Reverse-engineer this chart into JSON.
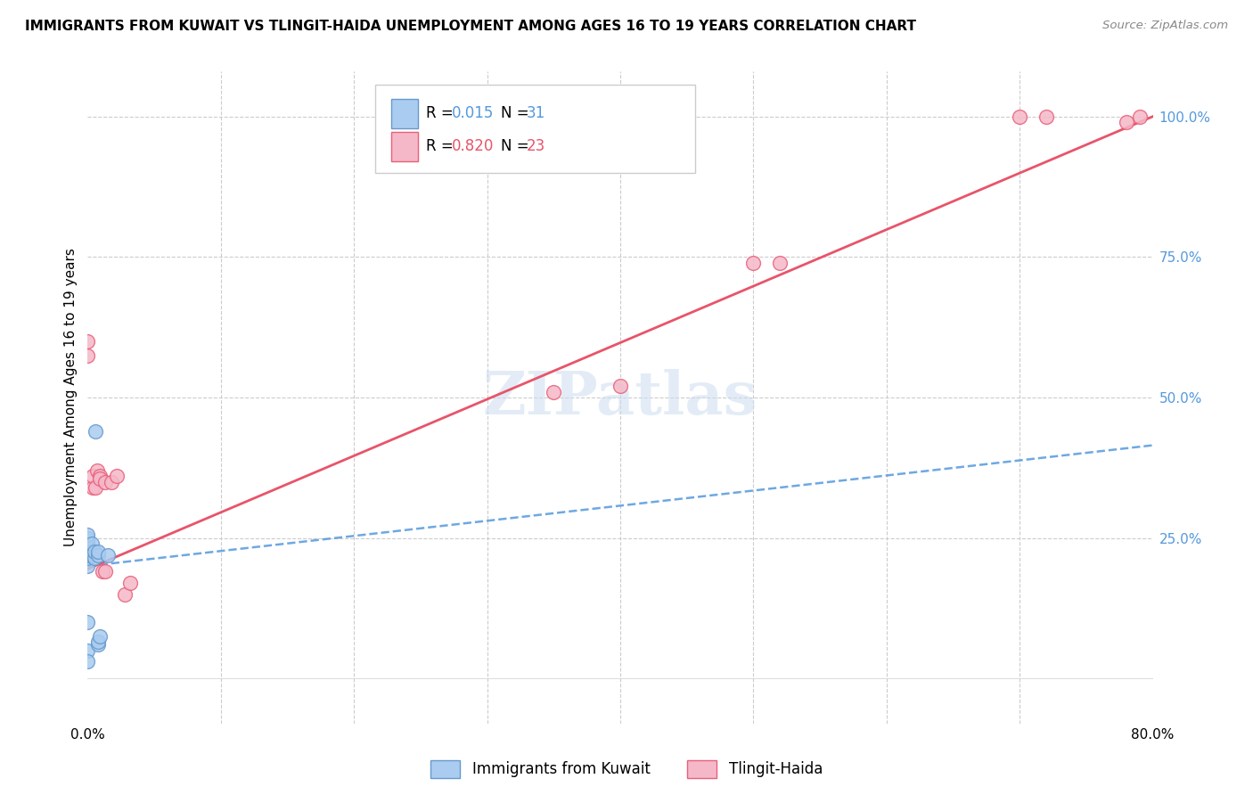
{
  "title": "IMMIGRANTS FROM KUWAIT VS TLINGIT-HAIDA UNEMPLOYMENT AMONG AGES 16 TO 19 YEARS CORRELATION CHART",
  "source": "Source: ZipAtlas.com",
  "ylabel": "Unemployment Among Ages 16 to 19 years",
  "ytick_labels": [
    "25.0%",
    "50.0%",
    "75.0%",
    "100.0%"
  ],
  "ytick_values": [
    0.25,
    0.5,
    0.75,
    1.0
  ],
  "xlim": [
    0,
    0.8
  ],
  "ylim": [
    -0.08,
    1.08
  ],
  "legend_blue_R": "0.015",
  "legend_blue_N": "31",
  "legend_pink_R": "0.820",
  "legend_pink_N": "23",
  "watermark": "ZIPatlas",
  "blue_fill": "#aaccf0",
  "blue_edge": "#6699cc",
  "pink_fill": "#f5b8c8",
  "pink_edge": "#e8607a",
  "blue_line_color": "#5599dd",
  "pink_line_color": "#e8546a",
  "blue_text_color": "#5599dd",
  "pink_text_color": "#e8546a",
  "right_tick_color": "#5599dd",
  "kuwait_x": [
    0.0,
    0.0,
    0.0,
    0.0,
    0.0,
    0.0,
    0.0,
    0.0,
    0.0,
    0.0,
    0.0,
    0.0,
    0.0,
    0.0,
    0.0,
    0.0,
    0.0,
    0.0,
    0.0,
    0.0,
    0.003,
    0.003,
    0.005,
    0.005,
    0.006,
    0.008,
    0.008,
    0.008,
    0.008,
    0.009,
    0.015
  ],
  "kuwait_y": [
    0.2,
    0.215,
    0.22,
    0.22,
    0.225,
    0.225,
    0.23,
    0.23,
    0.235,
    0.235,
    0.24,
    0.24,
    0.245,
    0.245,
    0.25,
    0.25,
    0.255,
    0.1,
    0.05,
    0.03,
    0.22,
    0.24,
    0.215,
    0.225,
    0.44,
    0.22,
    0.225,
    0.06,
    0.065,
    0.075,
    0.22
  ],
  "tlingit_x": [
    0.0,
    0.0,
    0.004,
    0.004,
    0.006,
    0.007,
    0.009,
    0.009,
    0.011,
    0.013,
    0.013,
    0.018,
    0.022,
    0.028,
    0.032,
    0.35,
    0.4,
    0.5,
    0.52,
    0.7,
    0.72,
    0.78,
    0.79
  ],
  "tlingit_y": [
    0.575,
    0.6,
    0.34,
    0.36,
    0.34,
    0.37,
    0.36,
    0.355,
    0.19,
    0.19,
    0.35,
    0.35,
    0.36,
    0.15,
    0.17,
    0.51,
    0.52,
    0.74,
    0.74,
    1.0,
    1.0,
    0.99,
    1.0
  ],
  "blue_trend_x0": 0.0,
  "blue_trend_x1": 0.8,
  "blue_trend_y0": 0.2,
  "blue_trend_y1": 0.415,
  "pink_trend_x0": 0.0,
  "pink_trend_x1": 0.8,
  "pink_trend_y0": 0.195,
  "pink_trend_y1": 1.0,
  "xtick_positions": [
    0.0,
    0.1,
    0.2,
    0.3,
    0.4,
    0.5,
    0.6,
    0.7,
    0.8
  ],
  "xtick_labels_show": [
    "0.0%",
    "",
    "",
    "",
    "",
    "",
    "",
    "",
    "80.0%"
  ]
}
